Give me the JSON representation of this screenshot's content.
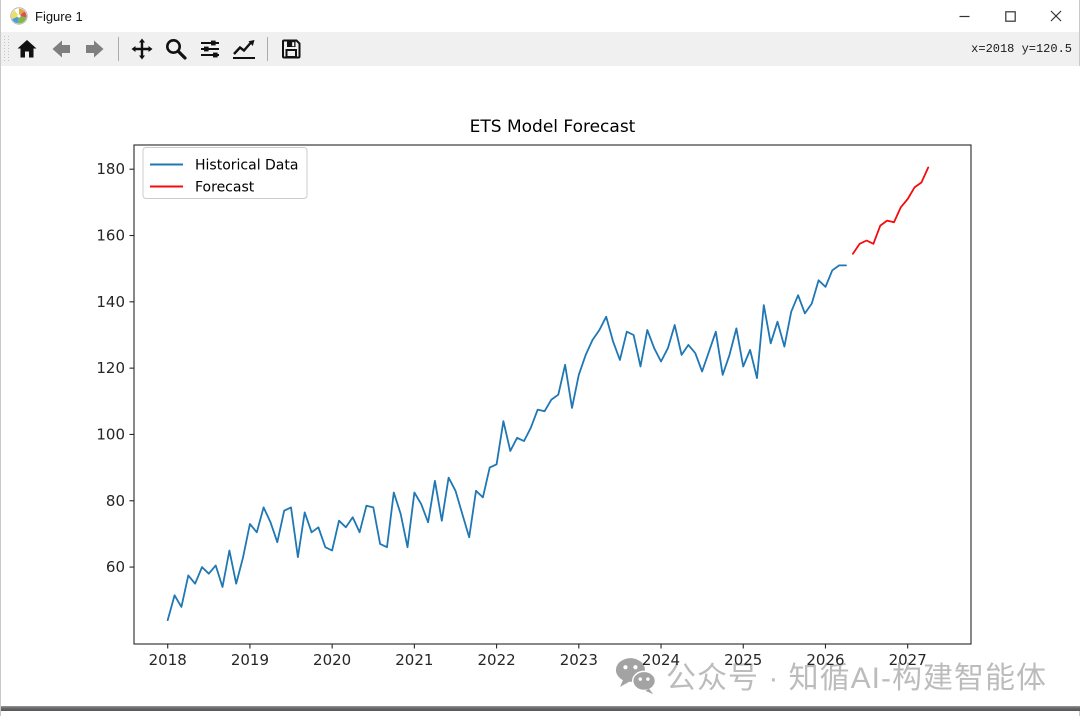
{
  "window": {
    "title": "Figure 1",
    "controls": {
      "minimize": "minimize",
      "maximize": "maximize",
      "close": "close"
    }
  },
  "toolbar": {
    "status": "x=2018 y=120.5",
    "tools": [
      "home",
      "back",
      "forward",
      "pan",
      "zoom",
      "configure-subplots",
      "customize",
      "save"
    ]
  },
  "chart_data": {
    "type": "line",
    "title": "ETS Model Forecast",
    "xlabel": "",
    "ylabel": "",
    "xlim": [
      2017.59,
      2027.77
    ],
    "ylim": [
      36.8,
      187.3
    ],
    "xticks": [
      2018,
      2019,
      2020,
      2021,
      2022,
      2023,
      2024,
      2025,
      2026,
      2027
    ],
    "yticks": [
      60,
      80,
      100,
      120,
      140,
      160,
      180
    ],
    "grid": false,
    "legend": {
      "position": "upper left",
      "entries": [
        {
          "label": "Historical Data",
          "color": "#1f77b4"
        },
        {
          "label": "Forecast",
          "color": "#f40c0c"
        }
      ]
    },
    "series": [
      {
        "name": "Historical Data",
        "color": "#1f77b4",
        "frequency": "monthly",
        "x_start": 2018.0,
        "x_step": 0.083333,
        "values": [
          44,
          51.5,
          48,
          57.5,
          55,
          60,
          58,
          60.5,
          54,
          65,
          55,
          63,
          73,
          70.5,
          78,
          73.5,
          67.5,
          77,
          78,
          63,
          76.5,
          70.5,
          72,
          66,
          65,
          74,
          72,
          75,
          70.5,
          78.5,
          78,
          67,
          66,
          82.5,
          76,
          66,
          82.5,
          79,
          73.5,
          86,
          74,
          87,
          83,
          76,
          69,
          83,
          81,
          90,
          91,
          104,
          95,
          99,
          98,
          102,
          107.5,
          107,
          110.5,
          112,
          121,
          108,
          118,
          124,
          128.5,
          131.5,
          135.5,
          128,
          122.5,
          131,
          130,
          120.5,
          131.5,
          126,
          122,
          126,
          133,
          124,
          127,
          124.5,
          119,
          125,
          131,
          118,
          124,
          132,
          120.5,
          125.5,
          117,
          139,
          127.5,
          134,
          126.5,
          137,
          142,
          136.5,
          139.5,
          146.5,
          144.5,
          149.5,
          151,
          151
        ]
      },
      {
        "name": "Forecast",
        "color": "#f40c0c",
        "frequency": "monthly",
        "x_start": 2026.333333,
        "x_step": 0.083333,
        "values": [
          154.5,
          157.5,
          158.5,
          157.5,
          163,
          164.5,
          164,
          168.5,
          171,
          174.5,
          176,
          180.5
        ]
      }
    ]
  },
  "watermark": {
    "icon": "wechat-logo",
    "text": "公众号 · 知循AI-构建智能体"
  }
}
